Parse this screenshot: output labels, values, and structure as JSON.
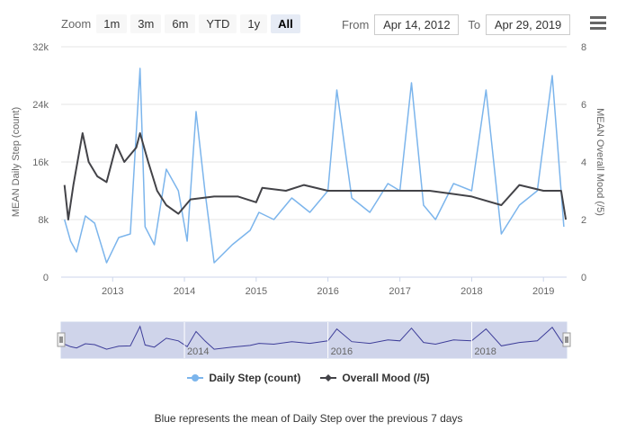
{
  "toolbar": {
    "zoom_label": "Zoom",
    "zoom_buttons": [
      "1m",
      "3m",
      "6m",
      "YTD",
      "1y",
      "All"
    ],
    "active_zoom": "All",
    "from_label": "From",
    "from_value": "Apr 14, 2012",
    "to_label": "To",
    "to_value": "Apr 29, 2019"
  },
  "caption": "Blue represents the mean of Daily Step over the previous 7 days",
  "colors": {
    "steps": "#7cb5ec",
    "mood": "#434348",
    "navigator_fill": "#cfd4ea",
    "navigator_line": "#3d3d99"
  },
  "chart_data": {
    "type": "line",
    "x_axis": {
      "type": "date",
      "range": [
        "2012-04-14",
        "2019-04-29"
      ],
      "tick_labels": [
        "2013",
        "2014",
        "2015",
        "2016",
        "2017",
        "2018",
        "2019"
      ]
    },
    "y_axis_left": {
      "title": "MEAN Daily Step (count)",
      "range": [
        0,
        32000
      ],
      "tick_labels": [
        "0",
        "8k",
        "16k",
        "24k",
        "32k"
      ]
    },
    "y_axis_right": {
      "title": "MEAN Overall Mood (/5)",
      "range": [
        0,
        8
      ],
      "tick_labels": [
        "0",
        "2",
        "4",
        "6",
        "8"
      ]
    },
    "legend_position": "bottom",
    "series": [
      {
        "name": "Daily Step (count)",
        "axis": "left",
        "points": [
          [
            "2012-05-01",
            8000
          ],
          [
            "2012-06-01",
            5000
          ],
          [
            "2012-07-01",
            3500
          ],
          [
            "2012-08-15",
            8500
          ],
          [
            "2012-10-01",
            7500
          ],
          [
            "2012-12-01",
            2000
          ],
          [
            "2013-02-01",
            5500
          ],
          [
            "2013-04-01",
            6000
          ],
          [
            "2013-05-20",
            29000
          ],
          [
            "2013-06-15",
            7000
          ],
          [
            "2013-08-01",
            4500
          ],
          [
            "2013-10-01",
            15000
          ],
          [
            "2013-12-01",
            12000
          ],
          [
            "2014-01-15",
            5000
          ],
          [
            "2014-03-01",
            23000
          ],
          [
            "2014-04-15",
            12000
          ],
          [
            "2014-06-01",
            2000
          ],
          [
            "2014-09-01",
            4500
          ],
          [
            "2014-12-01",
            6500
          ],
          [
            "2015-01-15",
            9000
          ],
          [
            "2015-04-01",
            8000
          ],
          [
            "2015-07-01",
            11000
          ],
          [
            "2015-10-01",
            9000
          ],
          [
            "2016-01-01",
            12000
          ],
          [
            "2016-02-15",
            26000
          ],
          [
            "2016-05-01",
            11000
          ],
          [
            "2016-08-01",
            9000
          ],
          [
            "2016-11-01",
            13000
          ],
          [
            "2017-01-01",
            12000
          ],
          [
            "2017-03-01",
            27000
          ],
          [
            "2017-05-01",
            10000
          ],
          [
            "2017-07-01",
            8000
          ],
          [
            "2017-10-01",
            13000
          ],
          [
            "2018-01-01",
            12000
          ],
          [
            "2018-03-15",
            26000
          ],
          [
            "2018-06-01",
            6000
          ],
          [
            "2018-09-01",
            10000
          ],
          [
            "2018-12-01",
            12000
          ],
          [
            "2019-02-15",
            28000
          ],
          [
            "2019-04-15",
            7000
          ]
        ]
      },
      {
        "name": "Overall Mood (/5)",
        "axis": "right",
        "points": [
          [
            "2012-05-01",
            3.2
          ],
          [
            "2012-05-20",
            2.0
          ],
          [
            "2012-06-15",
            3.2
          ],
          [
            "2012-08-01",
            5.0
          ],
          [
            "2012-09-01",
            4.0
          ],
          [
            "2012-10-15",
            3.5
          ],
          [
            "2012-12-01",
            3.3
          ],
          [
            "2013-01-20",
            4.6
          ],
          [
            "2013-03-01",
            4.0
          ],
          [
            "2013-05-01",
            4.5
          ],
          [
            "2013-05-20",
            5.0
          ],
          [
            "2013-07-01",
            4.0
          ],
          [
            "2013-08-15",
            3.0
          ],
          [
            "2013-10-01",
            2.5
          ],
          [
            "2013-12-01",
            2.2
          ],
          [
            "2014-02-01",
            2.7
          ],
          [
            "2014-06-01",
            2.8
          ],
          [
            "2014-10-01",
            2.8
          ],
          [
            "2015-01-01",
            2.6
          ],
          [
            "2015-02-01",
            3.1
          ],
          [
            "2015-06-01",
            3.0
          ],
          [
            "2015-09-01",
            3.2
          ],
          [
            "2016-01-01",
            3.0
          ],
          [
            "2016-06-01",
            3.0
          ],
          [
            "2017-01-01",
            3.0
          ],
          [
            "2017-06-01",
            3.0
          ],
          [
            "2018-01-01",
            2.8
          ],
          [
            "2018-06-01",
            2.5
          ],
          [
            "2018-09-01",
            3.2
          ],
          [
            "2019-01-01",
            3.0
          ],
          [
            "2019-04-01",
            3.0
          ],
          [
            "2019-04-25",
            2.0
          ]
        ]
      }
    ]
  }
}
